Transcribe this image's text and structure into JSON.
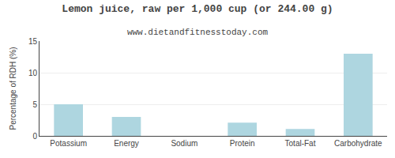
{
  "chart_data": {
    "type": "bar",
    "title": "Lemon juice, raw per 1,000 cup (or 244.00 g)",
    "subtitle": "www.dietandfitnesstoday.com",
    "categories": [
      "Potassium",
      "Energy",
      "Sodium",
      "Protein",
      "Total-Fat",
      "Carbohydrate"
    ],
    "values": [
      5.0,
      3.0,
      0.0,
      2.1,
      1.1,
      13.0
    ],
    "color": "#aed6e0",
    "ylabel": "Percentage of RDH (%)",
    "ylim": [
      0,
      15
    ],
    "yticks": [
      0,
      5,
      10,
      15
    ],
    "grid": true
  }
}
